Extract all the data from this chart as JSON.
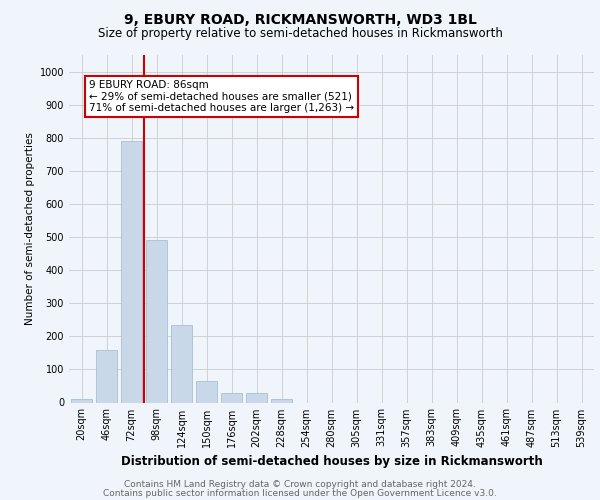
{
  "title1": "9, EBURY ROAD, RICKMANSWORTH, WD3 1BL",
  "title2": "Size of property relative to semi-detached houses in Rickmansworth",
  "xlabel": "Distribution of semi-detached houses by size in Rickmansworth",
  "ylabel": "Number of semi-detached properties",
  "categories": [
    "20sqm",
    "46sqm",
    "72sqm",
    "98sqm",
    "124sqm",
    "150sqm",
    "176sqm",
    "202sqm",
    "228sqm",
    "254sqm",
    "280sqm",
    "305sqm",
    "331sqm",
    "357sqm",
    "383sqm",
    "409sqm",
    "435sqm",
    "461sqm",
    "487sqm",
    "513sqm",
    "539sqm"
  ],
  "values": [
    10,
    160,
    790,
    490,
    235,
    65,
    30,
    30,
    12,
    0,
    0,
    0,
    0,
    0,
    0,
    0,
    0,
    0,
    0,
    0,
    0
  ],
  "bar_color": "#c8d8e8",
  "bar_edge_color": "#a0b8cc",
  "vline_x": 2.5,
  "vline_color": "#cc0000",
  "annotation_text": "9 EBURY ROAD: 86sqm\n← 29% of semi-detached houses are smaller (521)\n71% of semi-detached houses are larger (1,263) →",
  "annotation_box_color": "white",
  "annotation_box_edge": "#cc0000",
  "ylim": [
    0,
    1050
  ],
  "yticks": [
    0,
    100,
    200,
    300,
    400,
    500,
    600,
    700,
    800,
    900,
    1000
  ],
  "background_color": "#f0f4fb",
  "grid_color": "#cccccc",
  "footer1": "Contains HM Land Registry data © Crown copyright and database right 2024.",
  "footer2": "Contains public sector information licensed under the Open Government Licence v3.0.",
  "title1_fontsize": 10,
  "title2_fontsize": 8.5,
  "xlabel_fontsize": 8.5,
  "ylabel_fontsize": 7.5,
  "tick_fontsize": 7,
  "annot_fontsize": 7.5,
  "footer_fontsize": 6.5
}
